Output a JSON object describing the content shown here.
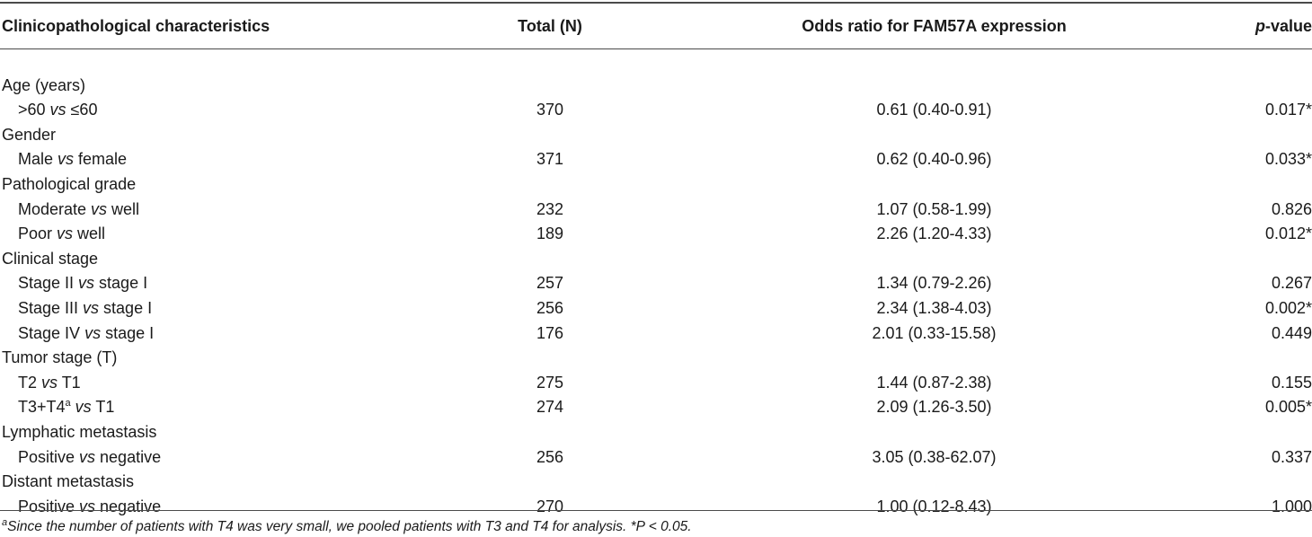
{
  "table": {
    "headers": {
      "characteristics": "Clinicopathological characteristics",
      "total": "Total (N)",
      "odds_ratio": "Odds ratio for FAM57A expression",
      "p_value_italic": "p",
      "p_value_rest": "-value"
    },
    "sections": [
      {
        "label": "Age (years)",
        "rows": [
          {
            "pre": ">60 ",
            "vs": "vs",
            "post": " ≤60",
            "sup": "",
            "after": "",
            "total": "370",
            "or": "0.61 (0.40-0.91)",
            "p": "0.017*"
          }
        ]
      },
      {
        "label": "Gender",
        "rows": [
          {
            "pre": "Male ",
            "vs": "vs",
            "post": " female",
            "sup": "",
            "after": "",
            "total": "371",
            "or": "0.62 (0.40-0.96)",
            "p": "0.033*"
          }
        ]
      },
      {
        "label": "Pathological grade",
        "rows": [
          {
            "pre": "Moderate ",
            "vs": "vs",
            "post": " well",
            "sup": "",
            "after": "",
            "total": "232",
            "or": "1.07 (0.58-1.99)",
            "p": "0.826"
          },
          {
            "pre": "Poor ",
            "vs": "vs",
            "post": " well",
            "sup": "",
            "after": "",
            "total": "189",
            "or": "2.26 (1.20-4.33)",
            "p": "0.012*"
          }
        ]
      },
      {
        "label": "Clinical stage",
        "rows": [
          {
            "pre": "Stage II ",
            "vs": "vs",
            "post": " stage I",
            "sup": "",
            "after": "",
            "total": "257",
            "or": "1.34 (0.79-2.26)",
            "p": "0.267"
          },
          {
            "pre": "Stage III ",
            "vs": "vs",
            "post": " stage I",
            "sup": "",
            "after": "",
            "total": "256",
            "or": "2.34 (1.38-4.03)",
            "p": "0.002*"
          },
          {
            "pre": "Stage IV ",
            "vs": "vs",
            "post": " stage I",
            "sup": "",
            "after": "",
            "total": "176",
            "or": "2.01 (0.33-15.58)",
            "p": "0.449"
          }
        ]
      },
      {
        "label": "Tumor stage (T)",
        "rows": [
          {
            "pre": "T2 ",
            "vs": "vs",
            "post": " T1",
            "sup": "",
            "after": "",
            "total": "275",
            "or": "1.44 (0.87-2.38)",
            "p": "0.155"
          },
          {
            "pre": "T3+T4",
            "vs": "vs",
            "post": " T1",
            "sup": "a",
            "after": " ",
            "total": "274",
            "or": "2.09 (1.26-3.50)",
            "p": "0.005*"
          }
        ]
      },
      {
        "label": "Lymphatic metastasis",
        "rows": [
          {
            "pre": "Positive ",
            "vs": "vs",
            "post": " negative",
            "sup": "",
            "after": "",
            "total": "256",
            "or": "3.05 (0.38-62.07)",
            "p": "0.337"
          }
        ]
      },
      {
        "label": "Distant metastasis",
        "rows": [
          {
            "pre": "Positive ",
            "vs": "vs",
            "post": " negative",
            "sup": "",
            "after": "",
            "total": "270",
            "or": "1.00 (0.12-8.43)",
            "p": "1.000"
          }
        ]
      }
    ]
  },
  "footnote": {
    "sup": "a",
    "text": "Since the number of patients with T4 was very small, we pooled patients with T3 and T4 for analysis. *P < 0.05."
  }
}
